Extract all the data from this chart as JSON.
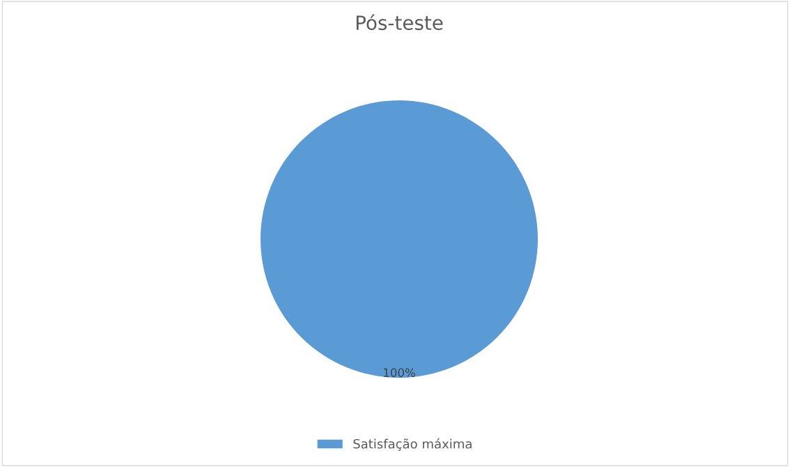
{
  "chart_data": {
    "type": "pie",
    "title": "Pós-teste",
    "categories": [
      "Satisfação máxima"
    ],
    "values": [
      100
    ],
    "colors": [
      "#5b9bd5"
    ],
    "value_labels": [
      "100%"
    ],
    "legend": "bottom"
  }
}
